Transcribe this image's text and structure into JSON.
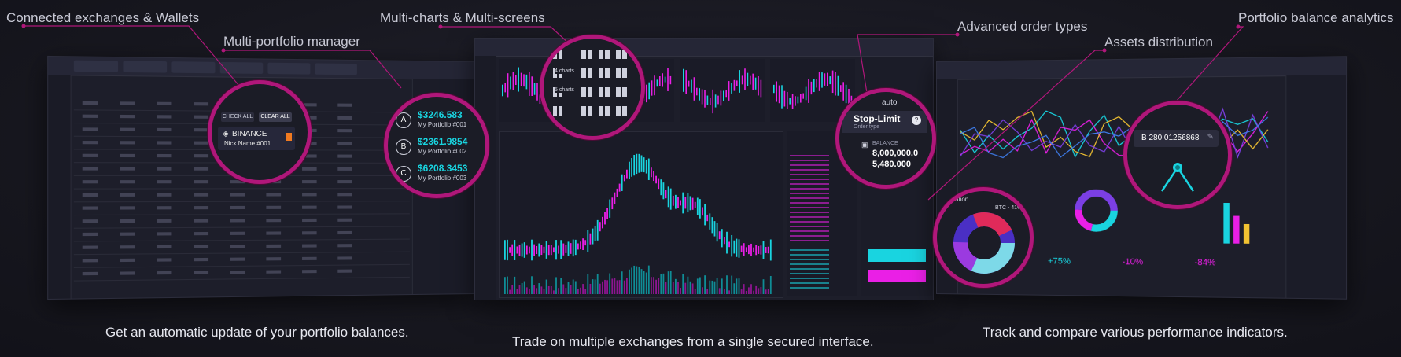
{
  "callouts": {
    "connected": "Connected exchanges & Wallets",
    "multi_portfolio": "Multi-portfolio manager",
    "multi_charts": "Multi-charts & Multi-screens",
    "advanced_orders": "Advanced order types",
    "assets_distribution": "Assets distribution",
    "portfolio_analytics": "Portfolio balance analytics"
  },
  "captions": {
    "left": "Get an automatic update of your portfolio balances.",
    "middle": "Trade on multiple exchanges from a single secured interface.",
    "right": "Track and compare various performance indicators."
  },
  "exchange_zoom": {
    "check_all": "CHECK ALL",
    "clear_all": "CLEAR ALL",
    "exchange": "BINANCE",
    "nickname": "Nick Name #001"
  },
  "portfolios_zoom": {
    "items": [
      {
        "letter": "A",
        "value": "$3246.583",
        "name": "My Portfolio #001"
      },
      {
        "letter": "B",
        "value": "$2361.9854",
        "name": "My Portfolio #002"
      },
      {
        "letter": "C",
        "value": "$6208.3453",
        "name": "My Portfolio #003"
      }
    ]
  },
  "charts_zoom": {
    "labels": [
      "4 charts",
      "5 charts"
    ]
  },
  "order_zoom": {
    "mode": "auto",
    "order_type": "Stop-Limit",
    "order_type_label": "Order type",
    "balance_label": "BALANCE",
    "balance_1": "8,000,000.0",
    "balance_2": "5,480.000"
  },
  "analytics_zoom": {
    "value": "Ƀ 280.01256868"
  },
  "right_screen": {
    "stats": [
      "+75%",
      "-10%",
      "-84%"
    ],
    "distribution_label": "istribution",
    "legend": "BTC - 41%"
  },
  "colors": {
    "accent_cyan": "#19d4e0",
    "accent_magenta": "#ea1fe6",
    "highlight_ring": "#b0177a",
    "background": "#16161f"
  }
}
